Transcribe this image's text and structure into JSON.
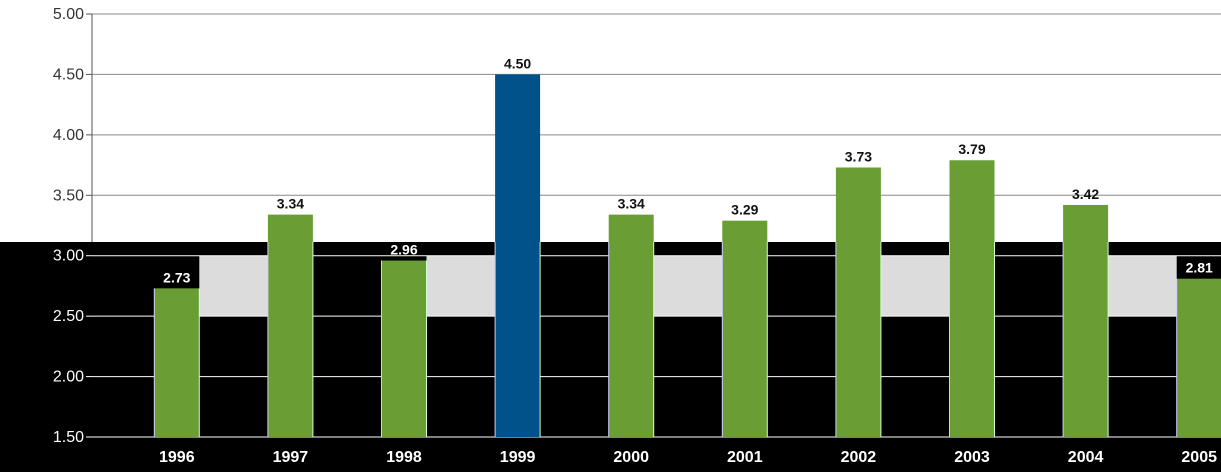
{
  "chart_data": {
    "type": "bar",
    "categories": [
      "1996",
      "1997",
      "1998",
      "1999",
      "2000",
      "2001",
      "2002",
      "2003",
      "2004",
      "2005"
    ],
    "values": [
      2.73,
      3.34,
      2.96,
      4.5,
      3.34,
      3.29,
      3.73,
      3.79,
      3.42,
      2.81
    ],
    "value_labels": [
      "2.73",
      "3.34",
      "2.96",
      "4.50",
      "3.34",
      "3.29",
      "3.73",
      "3.79",
      "3.42",
      "2.81"
    ],
    "highlight_index": 3,
    "ylim": [
      1.5,
      5.0
    ],
    "y_ticks": [
      "1.50",
      "2.00",
      "2.50",
      "3.00",
      "3.50",
      "4.00",
      "4.50",
      "5.00"
    ],
    "grid": true,
    "title": "",
    "xlabel": "",
    "ylabel": "",
    "colors": {
      "bar": "#6a9d34",
      "highlight": "#01528a",
      "grid": "#888888",
      "lower_panel": "#000000",
      "lower_band": "#dcdcdc"
    }
  }
}
